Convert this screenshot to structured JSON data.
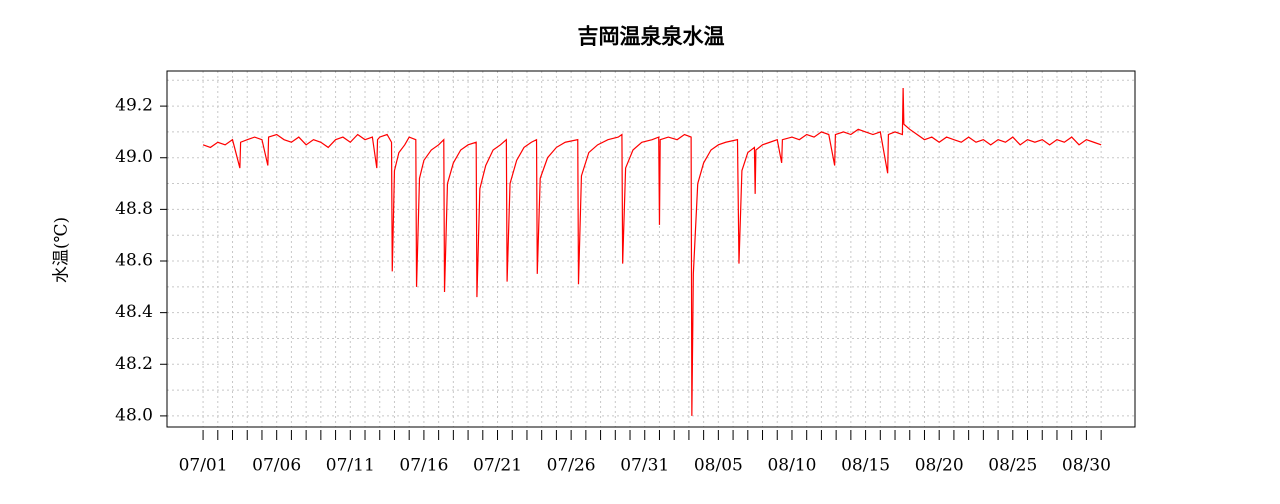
{
  "chart_data": {
    "type": "line",
    "title": "吉岡温泉泉水温",
    "y_label": "水温(℃)",
    "x": [
      0,
      0.5,
      1,
      1.5,
      2,
      2.5,
      2.55,
      3,
      3.5,
      4,
      4.4,
      4.45,
      5,
      5.5,
      6,
      6.5,
      7,
      7.5,
      8,
      8.5,
      9,
      9.5,
      10,
      10.5,
      11,
      11.5,
      11.8,
      11.85,
      12,
      12.5,
      12.8,
      12.85,
      13,
      13.3,
      13.7,
      14,
      14.45,
      14.5,
      14.7,
      15,
      15.5,
      16,
      16.35,
      16.4,
      16.6,
      17,
      17.5,
      18,
      18.55,
      18.6,
      18.8,
      19.2,
      19.7,
      20.2,
      20.6,
      20.65,
      20.85,
      21.3,
      21.8,
      22.3,
      22.65,
      22.7,
      22.9,
      23.4,
      24,
      24.6,
      25.45,
      25.5,
      25.7,
      26.2,
      26.8,
      27.5,
      28.2,
      28.45,
      28.5,
      28.7,
      29.2,
      29.8,
      30.5,
      30.95,
      31,
      31.05,
      31.6,
      32.2,
      32.7,
      33.15,
      33.2,
      33.3,
      33.6,
      34,
      34.5,
      35,
      35.5,
      36.3,
      36.4,
      36.6,
      37,
      37.45,
      37.5,
      37.55,
      38,
      38.5,
      39,
      39.3,
      39.35,
      40,
      40.5,
      41,
      41.5,
      42,
      42.5,
      42.9,
      42.95,
      43.5,
      44,
      44.5,
      45,
      45.5,
      46,
      46.5,
      46.55,
      47,
      47.5,
      47.55,
      47.6,
      48,
      48.5,
      49,
      49.5,
      50,
      50.5,
      51,
      51.5,
      52,
      52.5,
      53,
      53.5,
      54,
      54.5,
      55,
      55.5,
      56,
      56.5,
      57,
      57.5,
      58,
      58.5,
      59,
      59.5,
      60,
      60.5,
      61
    ],
    "series": [
      {
        "name": "水温",
        "color": "#ff0000",
        "values": [
          49.05,
          49.04,
          49.06,
          49.05,
          49.07,
          48.96,
          49.06,
          49.07,
          49.08,
          49.07,
          48.97,
          49.08,
          49.09,
          49.07,
          49.06,
          49.08,
          49.05,
          49.07,
          49.06,
          49.04,
          49.07,
          49.08,
          49.06,
          49.09,
          49.07,
          49.08,
          48.96,
          49.07,
          49.08,
          49.09,
          49.06,
          48.56,
          48.95,
          49.02,
          49.05,
          49.08,
          49.07,
          48.5,
          48.92,
          48.99,
          49.03,
          49.05,
          49.07,
          48.48,
          48.9,
          48.98,
          49.03,
          49.05,
          49.06,
          48.46,
          48.88,
          48.97,
          49.03,
          49.05,
          49.07,
          48.52,
          48.9,
          48.99,
          49.04,
          49.06,
          49.07,
          48.55,
          48.92,
          49.0,
          49.04,
          49.06,
          49.07,
          48.51,
          48.93,
          49.02,
          49.05,
          49.07,
          49.08,
          49.09,
          48.59,
          48.96,
          49.03,
          49.06,
          49.07,
          49.08,
          48.74,
          49.07,
          49.08,
          49.07,
          49.09,
          49.08,
          48.0,
          48.55,
          48.9,
          48.98,
          49.03,
          49.05,
          49.06,
          49.07,
          48.59,
          48.95,
          49.02,
          49.04,
          48.86,
          49.03,
          49.05,
          49.06,
          49.07,
          48.98,
          49.07,
          49.08,
          49.07,
          49.09,
          49.08,
          49.1,
          49.09,
          48.97,
          49.09,
          49.1,
          49.09,
          49.11,
          49.1,
          49.09,
          49.1,
          48.94,
          49.09,
          49.1,
          49.09,
          49.27,
          49.13,
          49.11,
          49.09,
          49.07,
          49.08,
          49.06,
          49.08,
          49.07,
          49.06,
          49.08,
          49.06,
          49.07,
          49.05,
          49.07,
          49.06,
          49.08,
          49.05,
          49.07,
          49.06,
          49.07,
          49.05,
          49.07,
          49.06,
          49.08,
          49.05,
          49.07,
          49.06,
          49.05
        ]
      }
    ],
    "xlim": [
      -2.45,
      63.3
    ],
    "xticks": [
      {
        "value": 0,
        "label": "07/01"
      },
      {
        "value": 5,
        "label": "07/06"
      },
      {
        "value": 10,
        "label": "07/11"
      },
      {
        "value": 15,
        "label": "07/16"
      },
      {
        "value": 20,
        "label": "07/21"
      },
      {
        "value": 25,
        "label": "07/26"
      },
      {
        "value": 30,
        "label": "07/31"
      },
      {
        "value": 35,
        "label": "08/05"
      },
      {
        "value": 40,
        "label": "08/10"
      },
      {
        "value": 45,
        "label": "08/15"
      },
      {
        "value": 50,
        "label": "08/20"
      },
      {
        "value": 55,
        "label": "08/25"
      },
      {
        "value": 60,
        "label": "08/30"
      }
    ],
    "xminorticks": [
      1,
      2,
      3,
      4,
      6,
      7,
      8,
      9,
      11,
      12,
      13,
      14,
      16,
      17,
      18,
      19,
      21,
      22,
      23,
      24,
      26,
      27,
      28,
      29,
      31,
      32,
      33,
      34,
      36,
      37,
      38,
      39,
      41,
      42,
      43,
      44,
      46,
      47,
      48,
      49,
      51,
      52,
      53,
      54,
      56,
      57,
      58,
      59,
      61
    ],
    "ylim": [
      47.957,
      49.336
    ],
    "yticks": [
      {
        "value": 48,
        "label": "48.0"
      },
      48.2,
      48.4,
      48.6,
      48.8,
      {
        "value": 49,
        "label": "49.0"
      },
      49.2
    ],
    "ygrid": [
      48.0,
      48.1,
      48.2,
      48.3,
      48.4,
      48.5,
      48.6,
      48.7,
      48.8,
      48.9,
      49.0,
      49.1,
      49.2,
      49.3
    ],
    "grid": true
  }
}
